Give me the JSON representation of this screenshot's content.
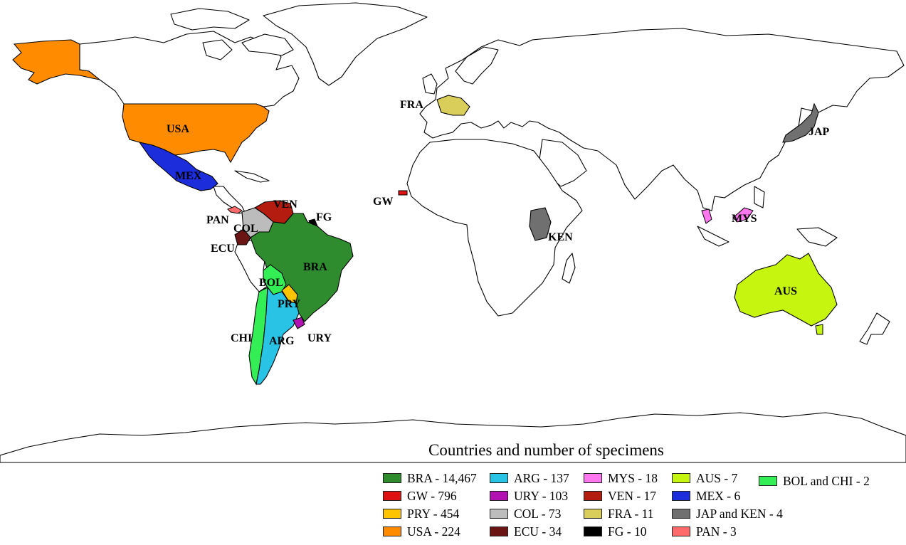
{
  "map": {
    "title": "Countries and number of specimens",
    "colors": {
      "BRA": "#2e8b2e",
      "GW": "#dd1111",
      "PRY": "#ffc400",
      "USA": "#ff8c00",
      "ARG": "#29c3e6",
      "URY": "#b312b3",
      "COL": "#bcbcbc",
      "ECU": "#6b1414",
      "MYS": "#ff77ee",
      "VEN": "#b51c10",
      "FRA": "#d9ce5a",
      "FG": "#000000",
      "AUS": "#c6f50f",
      "MEX": "#1c2ddc",
      "JAP_KEN": "#707070",
      "PAN": "#ff6a6a",
      "BOL_CHI": "#33ee55"
    },
    "labels": [
      {
        "id": "USA",
        "text": "USA"
      },
      {
        "id": "MEX",
        "text": "MEX"
      },
      {
        "id": "PAN",
        "text": "PAN"
      },
      {
        "id": "COL",
        "text": "COL"
      },
      {
        "id": "ECU",
        "text": "ECU"
      },
      {
        "id": "VEN",
        "text": "VEN"
      },
      {
        "id": "FG",
        "text": "FG"
      },
      {
        "id": "BRA",
        "text": "BRA"
      },
      {
        "id": "BOL",
        "text": "BOL"
      },
      {
        "id": "PRY",
        "text": "PRY"
      },
      {
        "id": "CHI",
        "text": "CHI"
      },
      {
        "id": "ARG",
        "text": "ARG"
      },
      {
        "id": "URY",
        "text": "URY"
      },
      {
        "id": "FRA",
        "text": "FRA"
      },
      {
        "id": "GW",
        "text": "GW"
      },
      {
        "id": "KEN",
        "text": "KEN"
      },
      {
        "id": "JAP",
        "text": "JAP"
      },
      {
        "id": "MYS",
        "text": "MYS"
      },
      {
        "id": "AUS",
        "text": "AUS"
      }
    ]
  },
  "legend": {
    "items": [
      {
        "label": "BRA - 14,467",
        "color": "#2e8b2e"
      },
      {
        "label": "GW - 796",
        "color": "#dd1111"
      },
      {
        "label": "PRY - 454",
        "color": "#ffc400"
      },
      {
        "label": "USA - 224",
        "color": "#ff8c00"
      },
      {
        "label": "ARG - 137",
        "color": "#29c3e6"
      },
      {
        "label": "URY - 103",
        "color": "#b312b3"
      },
      {
        "label": "COL - 73",
        "color": "#bcbcbc"
      },
      {
        "label": "ECU - 34",
        "color": "#6b1414"
      },
      {
        "label": "MYS - 18",
        "color": "#ff77ee"
      },
      {
        "label": "VEN - 17",
        "color": "#b51c10"
      },
      {
        "label": "FRA - 11",
        "color": "#d9ce5a"
      },
      {
        "label": "FG - 10",
        "color": "#000000"
      },
      {
        "label": "AUS - 7",
        "color": "#c6f50f"
      },
      {
        "label": "MEX - 6",
        "color": "#1c2ddc"
      },
      {
        "label": "JAP and KEN - 4",
        "color": "#707070"
      },
      {
        "label": "PAN - 3",
        "color": "#ff6a6a"
      },
      {
        "label": "BOL and CHI - 2",
        "color": "#33ee55"
      }
    ]
  }
}
